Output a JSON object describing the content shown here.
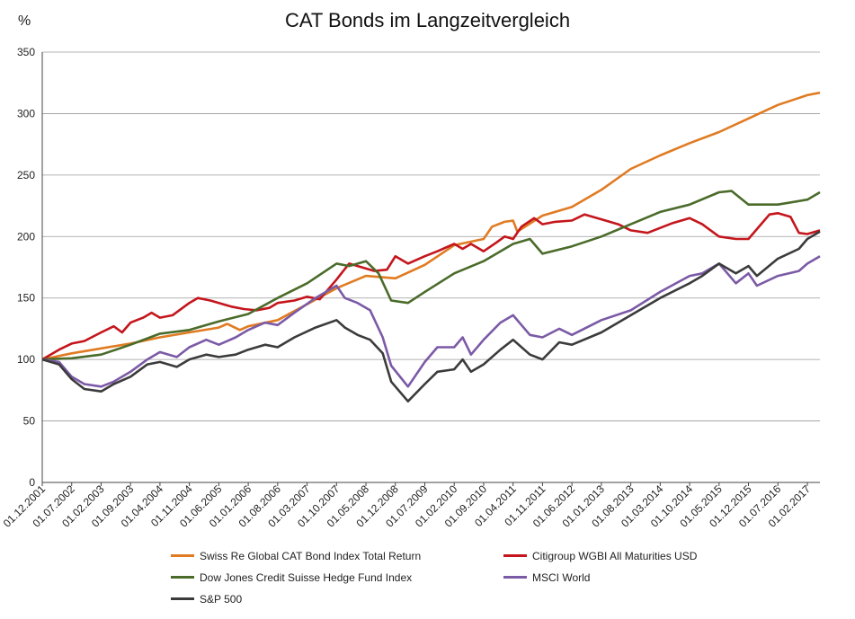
{
  "chart_data": {
    "type": "line",
    "title": "CAT Bonds im Langzeitvergleich",
    "ylabel": "%",
    "ylim": [
      0,
      350
    ],
    "yticks": [
      0,
      50,
      100,
      150,
      200,
      250,
      300,
      350
    ],
    "grid": "horizontal",
    "legend_position": "bottom",
    "x_start": "2001-12",
    "x_end": "2017-05",
    "xticks": [
      "01.12.2001",
      "01.07.2002",
      "01.02.2003",
      "01.09.2003",
      "01.04.2004",
      "01.11.2004",
      "01.06.2005",
      "01.01.2006",
      "01.08.2006",
      "01.03.2007",
      "01.10.2007",
      "01.05.2008",
      "01.12.2008",
      "01.07.2009",
      "01.02.2010",
      "01.09.2010",
      "01.04.2011",
      "01.11.2011",
      "01.06.2012",
      "01.01.2013",
      "01.08.2013",
      "01.03.2014",
      "01.10.2014",
      "01.05.2015",
      "01.12.2015",
      "01.07.2016",
      "01.02.2017"
    ],
    "series": [
      {
        "name": "Swiss Re Global CAT Bond Index Total Return",
        "color": "#e07b22",
        "points": [
          [
            "2001-12",
            100
          ],
          [
            "2002-07",
            105
          ],
          [
            "2003-02",
            109
          ],
          [
            "2003-09",
            113
          ],
          [
            "2004-04",
            118
          ],
          [
            "2004-11",
            122
          ],
          [
            "2005-06",
            126
          ],
          [
            "2005-08",
            129
          ],
          [
            "2005-11",
            124
          ],
          [
            "2006-01",
            127
          ],
          [
            "2006-08",
            132
          ],
          [
            "2007-03",
            145
          ],
          [
            "2007-10",
            158
          ],
          [
            "2008-05",
            168
          ],
          [
            "2008-12",
            166
          ],
          [
            "2009-07",
            177
          ],
          [
            "2010-02",
            193
          ],
          [
            "2010-09",
            198
          ],
          [
            "2010-11",
            208
          ],
          [
            "2011-02",
            212
          ],
          [
            "2011-04",
            213
          ],
          [
            "2011-05",
            204
          ],
          [
            "2011-11",
            217
          ],
          [
            "2012-06",
            224
          ],
          [
            "2013-01",
            238
          ],
          [
            "2013-08",
            255
          ],
          [
            "2014-03",
            266
          ],
          [
            "2014-10",
            276
          ],
          [
            "2015-05",
            285
          ],
          [
            "2015-12",
            296
          ],
          [
            "2016-07",
            307
          ],
          [
            "2017-02",
            315
          ],
          [
            "2017-05",
            317
          ]
        ]
      },
      {
        "name": "Citigroup WGBI All Maturities USD",
        "color": "#c4161c",
        "points": [
          [
            "2001-12",
            100
          ],
          [
            "2002-04",
            108
          ],
          [
            "2002-07",
            113
          ],
          [
            "2002-10",
            115
          ],
          [
            "2003-02",
            122
          ],
          [
            "2003-05",
            127
          ],
          [
            "2003-07",
            122
          ],
          [
            "2003-09",
            130
          ],
          [
            "2003-12",
            134
          ],
          [
            "2004-02",
            138
          ],
          [
            "2004-04",
            134
          ],
          [
            "2004-07",
            136
          ],
          [
            "2004-11",
            146
          ],
          [
            "2005-01",
            150
          ],
          [
            "2005-04",
            148
          ],
          [
            "2005-06",
            146
          ],
          [
            "2005-09",
            143
          ],
          [
            "2005-12",
            141
          ],
          [
            "2006-03",
            140
          ],
          [
            "2006-06",
            142
          ],
          [
            "2006-08",
            146
          ],
          [
            "2006-12",
            148
          ],
          [
            "2007-03",
            151
          ],
          [
            "2007-06",
            149
          ],
          [
            "2007-10",
            165
          ],
          [
            "2008-01",
            178
          ],
          [
            "2008-03",
            176
          ],
          [
            "2008-07",
            172
          ],
          [
            "2008-10",
            173
          ],
          [
            "2008-12",
            184
          ],
          [
            "2009-03",
            178
          ],
          [
            "2009-07",
            184
          ],
          [
            "2009-10",
            188
          ],
          [
            "2010-02",
            194
          ],
          [
            "2010-04",
            190
          ],
          [
            "2010-06",
            194
          ],
          [
            "2010-09",
            188
          ],
          [
            "2010-12",
            195
          ],
          [
            "2011-02",
            200
          ],
          [
            "2011-04",
            198
          ],
          [
            "2011-06",
            208
          ],
          [
            "2011-09",
            215
          ],
          [
            "2011-11",
            210
          ],
          [
            "2012-02",
            212
          ],
          [
            "2012-06",
            213
          ],
          [
            "2012-09",
            218
          ],
          [
            "2013-01",
            214
          ],
          [
            "2013-05",
            210
          ],
          [
            "2013-08",
            205
          ],
          [
            "2013-12",
            203
          ],
          [
            "2014-03",
            207
          ],
          [
            "2014-06",
            211
          ],
          [
            "2014-10",
            215
          ],
          [
            "2015-01",
            210
          ],
          [
            "2015-05",
            200
          ],
          [
            "2015-09",
            198
          ],
          [
            "2015-12",
            198
          ],
          [
            "2016-03",
            210
          ],
          [
            "2016-05",
            218
          ],
          [
            "2016-07",
            219
          ],
          [
            "2016-10",
            216
          ],
          [
            "2016-12",
            203
          ],
          [
            "2017-02",
            202
          ],
          [
            "2017-05",
            205
          ]
        ]
      },
      {
        "name": "Dow Jones Credit Suisse Hedge Fund Index",
        "color": "#4a6b2a",
        "points": [
          [
            "2001-12",
            100
          ],
          [
            "2002-07",
            101
          ],
          [
            "2003-02",
            104
          ],
          [
            "2003-09",
            112
          ],
          [
            "2004-04",
            121
          ],
          [
            "2004-11",
            124
          ],
          [
            "2005-06",
            131
          ],
          [
            "2006-01",
            137
          ],
          [
            "2006-08",
            150
          ],
          [
            "2007-03",
            162
          ],
          [
            "2007-10",
            178
          ],
          [
            "2008-01",
            176
          ],
          [
            "2008-05",
            180
          ],
          [
            "2008-08",
            170
          ],
          [
            "2008-11",
            148
          ],
          [
            "2009-03",
            146
          ],
          [
            "2009-07",
            155
          ],
          [
            "2010-02",
            170
          ],
          [
            "2010-09",
            180
          ],
          [
            "2011-04",
            194
          ],
          [
            "2011-08",
            198
          ],
          [
            "2011-11",
            186
          ],
          [
            "2012-06",
            192
          ],
          [
            "2013-01",
            200
          ],
          [
            "2013-08",
            210
          ],
          [
            "2014-03",
            220
          ],
          [
            "2014-10",
            226
          ],
          [
            "2015-05",
            236
          ],
          [
            "2015-08",
            237
          ],
          [
            "2015-12",
            226
          ],
          [
            "2016-07",
            226
          ],
          [
            "2017-02",
            230
          ],
          [
            "2017-05",
            236
          ]
        ]
      },
      {
        "name": "MSCI World",
        "color": "#7b5aa6",
        "points": [
          [
            "2001-12",
            100
          ],
          [
            "2002-04",
            98
          ],
          [
            "2002-07",
            86
          ],
          [
            "2002-10",
            80
          ],
          [
            "2003-02",
            78
          ],
          [
            "2003-05",
            82
          ],
          [
            "2003-09",
            90
          ],
          [
            "2004-01",
            100
          ],
          [
            "2004-04",
            106
          ],
          [
            "2004-08",
            102
          ],
          [
            "2004-11",
            110
          ],
          [
            "2005-03",
            116
          ],
          [
            "2005-06",
            112
          ],
          [
            "2005-10",
            118
          ],
          [
            "2006-01",
            124
          ],
          [
            "2006-05",
            130
          ],
          [
            "2006-08",
            128
          ],
          [
            "2006-12",
            138
          ],
          [
            "2007-05",
            150
          ],
          [
            "2007-10",
            160
          ],
          [
            "2007-12",
            150
          ],
          [
            "2008-03",
            146
          ],
          [
            "2008-06",
            140
          ],
          [
            "2008-09",
            118
          ],
          [
            "2008-11",
            95
          ],
          [
            "2009-03",
            78
          ],
          [
            "2009-07",
            98
          ],
          [
            "2009-10",
            110
          ],
          [
            "2010-02",
            110
          ],
          [
            "2010-04",
            118
          ],
          [
            "2010-06",
            104
          ],
          [
            "2010-09",
            116
          ],
          [
            "2011-01",
            130
          ],
          [
            "2011-04",
            136
          ],
          [
            "2011-08",
            120
          ],
          [
            "2011-11",
            118
          ],
          [
            "2012-03",
            125
          ],
          [
            "2012-06",
            120
          ],
          [
            "2013-01",
            132
          ],
          [
            "2013-08",
            140
          ],
          [
            "2014-03",
            155
          ],
          [
            "2014-10",
            168
          ],
          [
            "2015-01",
            170
          ],
          [
            "2015-05",
            178
          ],
          [
            "2015-09",
            162
          ],
          [
            "2015-12",
            170
          ],
          [
            "2016-02",
            160
          ],
          [
            "2016-07",
            168
          ],
          [
            "2016-12",
            172
          ],
          [
            "2017-02",
            178
          ],
          [
            "2017-05",
            184
          ]
        ]
      },
      {
        "name": "S&P 500",
        "color": "#3b3b3b",
        "points": [
          [
            "2001-12",
            100
          ],
          [
            "2002-04",
            96
          ],
          [
            "2002-07",
            84
          ],
          [
            "2002-10",
            76
          ],
          [
            "2003-02",
            74
          ],
          [
            "2003-05",
            80
          ],
          [
            "2003-09",
            86
          ],
          [
            "2004-01",
            96
          ],
          [
            "2004-04",
            98
          ],
          [
            "2004-08",
            94
          ],
          [
            "2004-11",
            100
          ],
          [
            "2005-03",
            104
          ],
          [
            "2005-06",
            102
          ],
          [
            "2005-10",
            104
          ],
          [
            "2006-01",
            108
          ],
          [
            "2006-05",
            112
          ],
          [
            "2006-08",
            110
          ],
          [
            "2006-12",
            118
          ],
          [
            "2007-05",
            126
          ],
          [
            "2007-10",
            132
          ],
          [
            "2007-12",
            126
          ],
          [
            "2008-03",
            120
          ],
          [
            "2008-06",
            116
          ],
          [
            "2008-09",
            105
          ],
          [
            "2008-11",
            82
          ],
          [
            "2009-03",
            66
          ],
          [
            "2009-07",
            80
          ],
          [
            "2009-10",
            90
          ],
          [
            "2010-02",
            92
          ],
          [
            "2010-04",
            100
          ],
          [
            "2010-06",
            90
          ],
          [
            "2010-09",
            96
          ],
          [
            "2011-01",
            108
          ],
          [
            "2011-04",
            116
          ],
          [
            "2011-08",
            104
          ],
          [
            "2011-11",
            100
          ],
          [
            "2012-03",
            114
          ],
          [
            "2012-06",
            112
          ],
          [
            "2013-01",
            122
          ],
          [
            "2013-08",
            136
          ],
          [
            "2014-03",
            150
          ],
          [
            "2014-10",
            162
          ],
          [
            "2015-01",
            168
          ],
          [
            "2015-05",
            178
          ],
          [
            "2015-09",
            170
          ],
          [
            "2015-12",
            176
          ],
          [
            "2016-02",
            168
          ],
          [
            "2016-07",
            182
          ],
          [
            "2016-12",
            190
          ],
          [
            "2017-02",
            198
          ],
          [
            "2017-05",
            204
          ]
        ]
      }
    ]
  }
}
